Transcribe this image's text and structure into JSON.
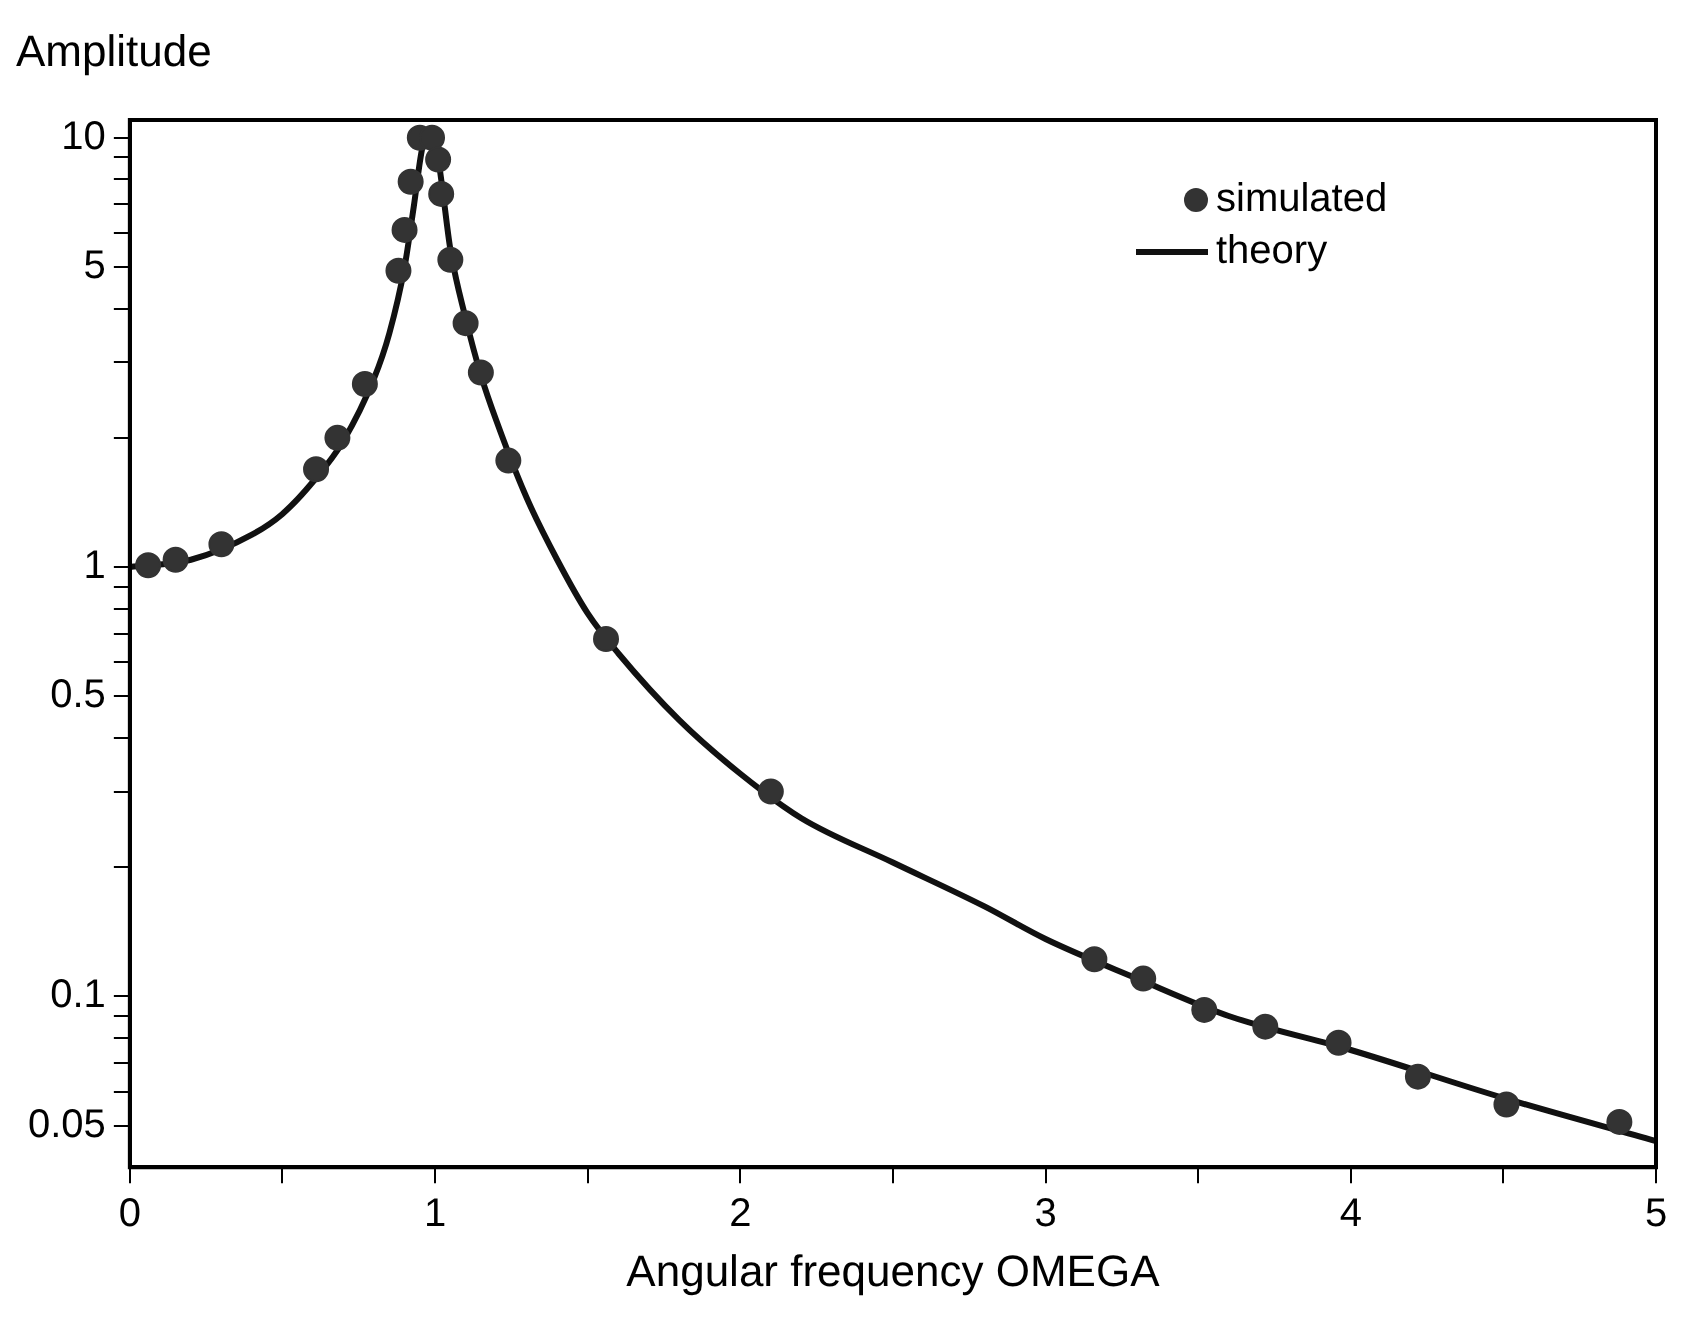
{
  "chart_data": {
    "type": "line",
    "ylabel": "Amplitude",
    "xlabel": "Angular frequency OMEGA",
    "log": "y",
    "xlim": [
      0,
      5
    ],
    "ylim": [
      0.04,
      11
    ],
    "xticks": [
      0,
      {
        "value": 0.5,
        "label": null
      },
      1,
      {
        "value": 1.5,
        "label": null
      },
      2,
      {
        "value": 2.5,
        "label": null
      },
      3,
      {
        "value": 3.5,
        "label": null
      },
      4,
      {
        "value": 4.5,
        "label": null
      },
      5
    ],
    "yticks": [
      0.05,
      {
        "value": 0.06,
        "label": null
      },
      {
        "value": 0.07,
        "label": null
      },
      {
        "value": 0.08,
        "label": null
      },
      {
        "value": 0.09,
        "label": null
      },
      0.1,
      {
        "value": 0.2,
        "label": null
      },
      {
        "value": 0.3,
        "label": null
      },
      {
        "value": 0.4,
        "label": null
      },
      0.5,
      {
        "value": 0.6,
        "label": null
      },
      {
        "value": 0.7,
        "label": null
      },
      {
        "value": 0.8,
        "label": null
      },
      {
        "value": 0.9,
        "label": null
      },
      1,
      {
        "value": 2,
        "label": null
      },
      {
        "value": 3,
        "label": null
      },
      {
        "value": 4,
        "label": null
      },
      5,
      {
        "value": 6,
        "label": null
      },
      {
        "value": 7,
        "label": null
      },
      {
        "value": 8,
        "label": null
      },
      {
        "value": 9,
        "label": null
      },
      10
    ],
    "grid": false,
    "legend": "top right",
    "series": [
      {
        "name": "simulated",
        "type": "scatter",
        "marker": "circle",
        "color": "#333333",
        "x": [
          0.06,
          0.15,
          0.3,
          0.61,
          0.68,
          0.77,
          0.88,
          0.9,
          0.92,
          0.95,
          0.99,
          1.01,
          1.02,
          1.05,
          1.1,
          1.15,
          1.24,
          1.56,
          2.1,
          3.16,
          3.32,
          3.52,
          3.72,
          3.96,
          4.22,
          4.51,
          4.88
        ],
        "values": [
          1.01,
          1.04,
          1.13,
          1.69,
          2.0,
          2.67,
          4.9,
          6.1,
          7.9,
          10,
          10,
          8.9,
          7.4,
          5.2,
          3.7,
          2.84,
          1.77,
          0.68,
          0.3,
          0.122,
          0.11,
          0.093,
          0.085,
          0.078,
          0.065,
          0.056,
          0.051
        ]
      },
      {
        "name": "theory",
        "line_style": "solid",
        "marker": "none",
        "color": "#111111",
        "x": [
          0,
          0.2,
          0.4,
          0.5,
          0.6,
          0.7,
          0.8,
          0.85,
          0.9,
          0.93,
          0.96,
          0.98,
          1.0,
          1.02,
          1.05,
          1.1,
          1.15,
          1.2,
          1.3,
          1.4,
          1.5,
          1.6,
          1.8,
          2.0,
          2.2,
          2.5,
          2.8,
          3.0,
          3.3,
          3.6,
          4.0,
          4.5,
          5.0
        ],
        "values": [
          1.0,
          1.04,
          1.19,
          1.33,
          1.58,
          1.97,
          2.75,
          3.5,
          5.0,
          6.9,
          9.6,
          10,
          9.8,
          8.0,
          5.5,
          3.8,
          2.8,
          2.2,
          1.45,
          1.04,
          0.78,
          0.63,
          0.44,
          0.33,
          0.26,
          0.205,
          0.162,
          0.136,
          0.11,
          0.09,
          0.075,
          0.058,
          0.046
        ]
      }
    ]
  }
}
